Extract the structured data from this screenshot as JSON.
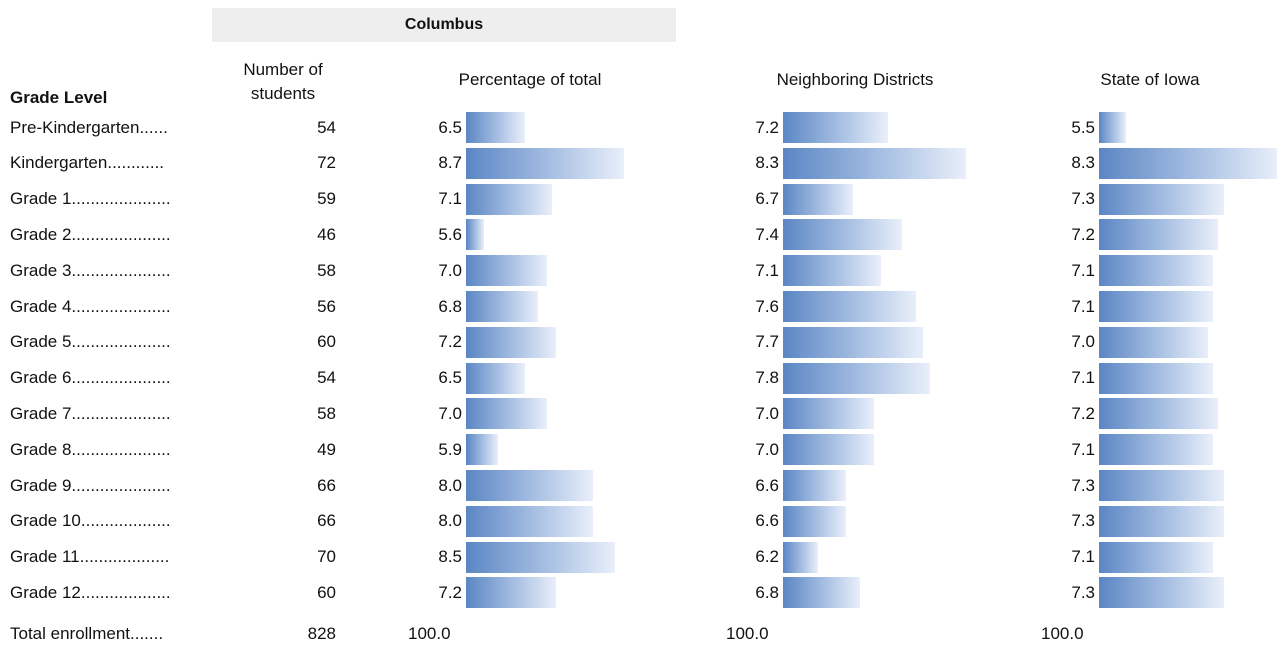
{
  "header": {
    "title": "Columbus",
    "grade_level_label": "Grade Level",
    "num_students_line1": "Number of",
    "num_students_line2": "students",
    "pct_total_label": "Percentage of total",
    "neighbor_label": "Neighboring Districts",
    "state_label": "State of Iowa"
  },
  "chart_data": {
    "type": "bar",
    "orientation": "horizontal",
    "categories": [
      "Pre-Kindergarten......",
      "Kindergarten............",
      "Grade 1.....................",
      "Grade 2.....................",
      "Grade 3.....................",
      "Grade 4.....................",
      "Grade 5.....................",
      "Grade 6.....................",
      "Grade 7.....................",
      "Grade 8.....................",
      "Grade 9.....................",
      "Grade 10...................",
      "Grade 11...................",
      "Grade 12..................."
    ],
    "students": [
      "54",
      "72",
      "59",
      "46",
      "58",
      "56",
      "60",
      "54",
      "58",
      "49",
      "66",
      "66",
      "70",
      "60"
    ],
    "series": [
      {
        "values": [
          6.5,
          8.7,
          7.1,
          5.6,
          7.0,
          6.8,
          7.2,
          6.5,
          7.0,
          5.9,
          8.0,
          8.0,
          8.5,
          7.2
        ]
      },
      {
        "values": [
          7.2,
          8.3,
          6.7,
          7.4,
          7.1,
          7.6,
          7.7,
          7.8,
          7.0,
          7.0,
          6.6,
          6.6,
          6.2,
          6.8
        ]
      },
      {
        "values": [
          5.5,
          8.3,
          7.3,
          7.2,
          7.1,
          7.1,
          7.0,
          7.1,
          7.2,
          7.1,
          7.3,
          7.3,
          7.1,
          7.3
        ]
      }
    ],
    "total": {
      "label": "Total enrollment.......",
      "students": "828",
      "percentages": [
        "100.0",
        "100.0",
        "100.0"
      ]
    }
  }
}
